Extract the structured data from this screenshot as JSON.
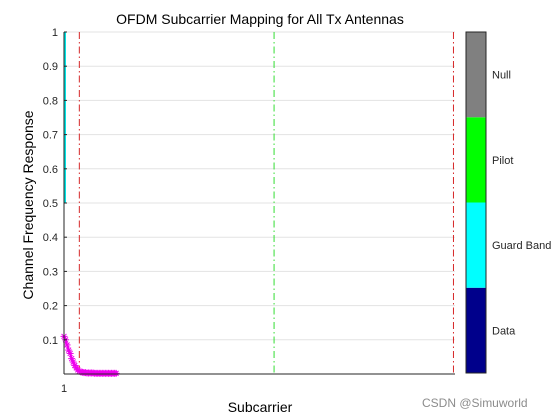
{
  "chart_data": {
    "type": "line",
    "title": "OFDM Subcarrier Mapping for All Tx Antennas",
    "xlabel": "Subcarrier",
    "ylabel": "Channel Frequency Response",
    "x_tick_labels": [
      "1"
    ],
    "y_ticks": [
      0.1,
      0.2,
      0.3,
      0.4,
      0.5,
      0.6,
      0.7,
      0.8,
      0.9,
      1
    ],
    "xlim": [
      1,
      256
    ],
    "ylim": [
      0,
      1
    ],
    "grid": "horizontal",
    "vertical_markers": [
      {
        "x": 11,
        "color": "#d62728",
        "style": "dash-dot"
      },
      {
        "x": 138,
        "color": "#33dd33",
        "style": "dash-dot"
      },
      {
        "x": 255,
        "color": "#d62728",
        "style": "dash-dot"
      }
    ],
    "guard_band_line": {
      "x": 1,
      "y_from": 0.5,
      "y_to": 1,
      "color": "#00e5e5"
    },
    "series": [
      {
        "color": "#ee00ee",
        "marker": "asterisk",
        "x": [
          1,
          2,
          3,
          4,
          5,
          6,
          7,
          8,
          9,
          10,
          11,
          12,
          13,
          14,
          15,
          16,
          17,
          18,
          19,
          20,
          21,
          22,
          23,
          24,
          25,
          26,
          27,
          28,
          29,
          30,
          31,
          32,
          33,
          34,
          35
        ],
        "y": [
          0.11,
          0.1,
          0.085,
          0.07,
          0.06,
          0.045,
          0.035,
          0.025,
          0.018,
          0.012,
          0.008,
          0.006,
          0.005,
          0.004,
          0.004,
          0.003,
          0.003,
          0.003,
          0.003,
          0.003,
          0.002,
          0.002,
          0.002,
          0.002,
          0.002,
          0.002,
          0.002,
          0.002,
          0.002,
          0.002,
          0.002,
          0.002,
          0.002,
          0.002,
          0.002
        ]
      }
    ],
    "colorbar": {
      "labels": [
        "Data",
        "Guard Band",
        "Pilot",
        "Null"
      ],
      "colors": [
        "#00008b",
        "#00ffff",
        "#00ff00",
        "#808080"
      ]
    }
  },
  "watermark": "CSDN @Simuworld"
}
